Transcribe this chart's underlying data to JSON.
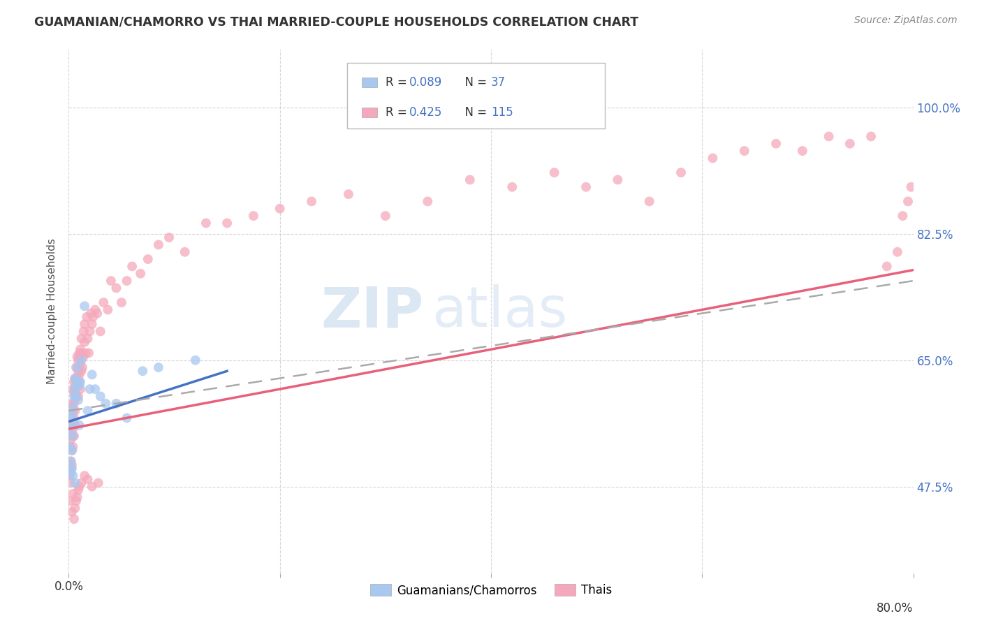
{
  "title": "GUAMANIAN/CHAMORRO VS THAI MARRIED-COUPLE HOUSEHOLDS CORRELATION CHART",
  "source": "Source: ZipAtlas.com",
  "ylabel": "Married-couple Households",
  "watermark_zip": "ZIP",
  "watermark_atlas": "atlas",
  "legend_r1": "R = 0.089",
  "legend_n1": "N =  37",
  "legend_r2": "R = 0.425",
  "legend_n2": "N = 115",
  "color_blue": "#A8C8F0",
  "color_pink": "#F5A8BC",
  "color_blue_line": "#4472C4",
  "color_pink_line": "#E8607A",
  "color_dashed": "#AAAAAA",
  "color_legend_text": "#4472C4",
  "ytick_labels": [
    "47.5%",
    "65.0%",
    "82.5%",
    "100.0%"
  ],
  "ytick_values": [
    0.475,
    0.65,
    0.825,
    1.0
  ],
  "xmin": 0.0,
  "xmax": 0.8,
  "ymin": 0.355,
  "ymax": 1.08,
  "guam_scatter_x": [
    0.001,
    0.001,
    0.002,
    0.002,
    0.002,
    0.003,
    0.003,
    0.003,
    0.004,
    0.004,
    0.004,
    0.005,
    0.005,
    0.006,
    0.006,
    0.006,
    0.007,
    0.007,
    0.008,
    0.008,
    0.009,
    0.01,
    0.01,
    0.011,
    0.012,
    0.015,
    0.018,
    0.02,
    0.022,
    0.025,
    0.03,
    0.035,
    0.045,
    0.055,
    0.07,
    0.085,
    0.12
  ],
  "guam_scatter_y": [
    0.53,
    0.555,
    0.51,
    0.57,
    0.495,
    0.5,
    0.525,
    0.575,
    0.545,
    0.585,
    0.49,
    0.6,
    0.56,
    0.61,
    0.625,
    0.48,
    0.615,
    0.6,
    0.62,
    0.64,
    0.595,
    0.56,
    0.615,
    0.62,
    0.65,
    0.725,
    0.58,
    0.61,
    0.63,
    0.61,
    0.6,
    0.59,
    0.59,
    0.57,
    0.635,
    0.64,
    0.65
  ],
  "thai_scatter_x": [
    0.001,
    0.001,
    0.001,
    0.002,
    0.002,
    0.002,
    0.002,
    0.003,
    0.003,
    0.003,
    0.003,
    0.003,
    0.004,
    0.004,
    0.004,
    0.004,
    0.005,
    0.005,
    0.005,
    0.005,
    0.005,
    0.006,
    0.006,
    0.006,
    0.006,
    0.006,
    0.007,
    0.007,
    0.007,
    0.008,
    0.008,
    0.008,
    0.009,
    0.009,
    0.009,
    0.01,
    0.01,
    0.01,
    0.01,
    0.011,
    0.011,
    0.011,
    0.012,
    0.012,
    0.013,
    0.013,
    0.014,
    0.014,
    0.015,
    0.015,
    0.016,
    0.017,
    0.018,
    0.019,
    0.02,
    0.021,
    0.022,
    0.023,
    0.025,
    0.027,
    0.03,
    0.033,
    0.037,
    0.04,
    0.045,
    0.05,
    0.055,
    0.06,
    0.068,
    0.075,
    0.085,
    0.095,
    0.11,
    0.13,
    0.15,
    0.175,
    0.2,
    0.23,
    0.265,
    0.3,
    0.34,
    0.38,
    0.42,
    0.46,
    0.49,
    0.52,
    0.55,
    0.58,
    0.61,
    0.64,
    0.67,
    0.695,
    0.72,
    0.74,
    0.76,
    0.775,
    0.785,
    0.79,
    0.795,
    0.798,
    0.001,
    0.002,
    0.003,
    0.004,
    0.005,
    0.006,
    0.007,
    0.008,
    0.009,
    0.01,
    0.012,
    0.015,
    0.018,
    0.022,
    0.028
  ],
  "thai_scatter_y": [
    0.53,
    0.555,
    0.49,
    0.51,
    0.54,
    0.57,
    0.5,
    0.56,
    0.545,
    0.525,
    0.505,
    0.59,
    0.58,
    0.555,
    0.53,
    0.61,
    0.59,
    0.605,
    0.57,
    0.545,
    0.62,
    0.58,
    0.61,
    0.625,
    0.595,
    0.56,
    0.6,
    0.62,
    0.64,
    0.615,
    0.625,
    0.655,
    0.635,
    0.65,
    0.6,
    0.63,
    0.66,
    0.62,
    0.655,
    0.645,
    0.665,
    0.61,
    0.635,
    0.68,
    0.66,
    0.64,
    0.655,
    0.69,
    0.675,
    0.7,
    0.66,
    0.71,
    0.68,
    0.66,
    0.69,
    0.715,
    0.7,
    0.71,
    0.72,
    0.715,
    0.69,
    0.73,
    0.72,
    0.76,
    0.75,
    0.73,
    0.76,
    0.78,
    0.77,
    0.79,
    0.81,
    0.82,
    0.8,
    0.84,
    0.84,
    0.85,
    0.86,
    0.87,
    0.88,
    0.85,
    0.87,
    0.9,
    0.89,
    0.91,
    0.89,
    0.9,
    0.87,
    0.91,
    0.93,
    0.94,
    0.95,
    0.94,
    0.96,
    0.95,
    0.96,
    0.78,
    0.8,
    0.85,
    0.87,
    0.89,
    0.455,
    0.48,
    0.44,
    0.465,
    0.43,
    0.445,
    0.455,
    0.46,
    0.47,
    0.475,
    0.48,
    0.49,
    0.485,
    0.475,
    0.48
  ],
  "guam_line_x": [
    0.0,
    0.15
  ],
  "guam_line_y": [
    0.565,
    0.635
  ],
  "thai_line_x": [
    0.0,
    0.8
  ],
  "thai_line_y": [
    0.555,
    0.775
  ],
  "dash_line_x": [
    0.0,
    0.8
  ],
  "dash_line_y": [
    0.58,
    0.76
  ]
}
